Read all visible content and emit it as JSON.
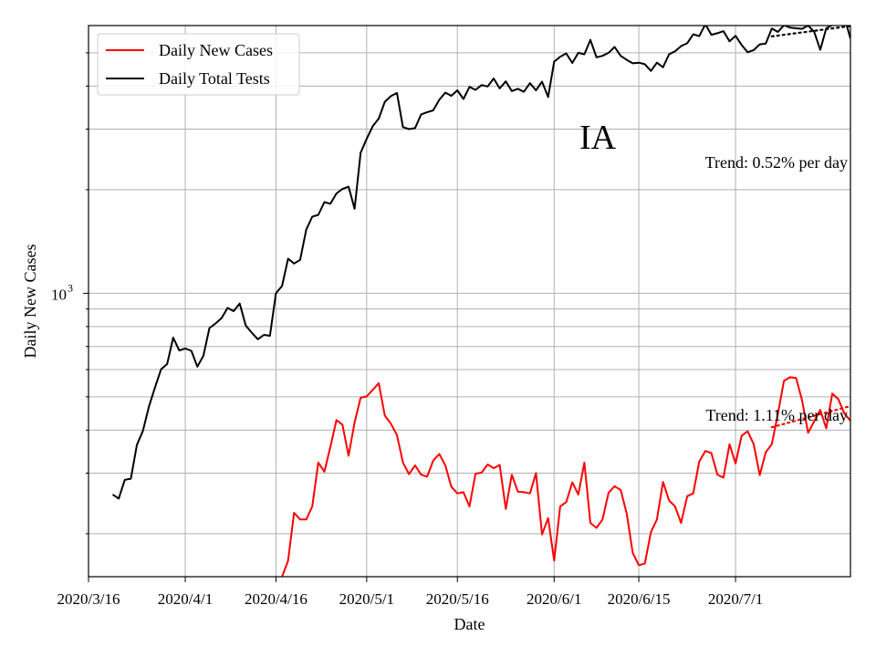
{
  "chart_data": {
    "type": "line",
    "title": "IA",
    "xlabel": "Date",
    "ylabel": "Daily New Cases",
    "yscale": "log",
    "grid": true,
    "legend_placement": "top-left",
    "x_ticks": [
      "2020/3/16",
      "2020/4/1",
      "2020/4/16",
      "2020/5/1",
      "2020/5/16",
      "2020/6/1",
      "2020/6/15",
      "2020/7/1"
    ],
    "x_tick_days": [
      0,
      16,
      31,
      46,
      61,
      77,
      91,
      107
    ],
    "ylim": [
      150,
      6000
    ],
    "y_major_tick": {
      "value": 1000,
      "base": "10",
      "exponent": "3"
    },
    "y_minor_ticks": [
      200,
      300,
      400,
      500,
      600,
      700,
      800,
      900,
      2000,
      3000,
      4000,
      5000
    ],
    "x_start_date": "2020-03-16",
    "x_end_day": 126,
    "series": [
      {
        "name": "Daily New Cases",
        "color": "#ff0000",
        "start_date": "2020-04-17",
        "values": [
          150,
          167,
          230,
          220,
          220,
          240,
          322,
          303,
          358,
          428,
          415,
          337,
          421,
          497,
          501,
          524,
          548,
          441,
          418,
          387,
          322,
          298,
          316,
          297,
          293,
          326,
          341,
          316,
          274,
          262,
          264,
          240,
          299,
          301,
          318,
          310,
          317,
          236,
          297,
          265,
          264,
          262,
          300,
          199,
          222,
          167,
          240,
          247,
          282,
          260,
          322,
          215,
          208,
          220,
          263,
          275,
          268,
          229,
          176,
          162,
          164,
          202,
          220,
          283,
          250,
          240,
          215,
          257,
          262,
          324,
          348,
          343,
          297,
          291,
          364,
          320,
          385,
          397,
          364,
          296,
          345,
          364,
          446,
          556,
          570,
          567,
          488,
          393,
          424,
          458,
          405,
          511,
          492,
          447,
          426
        ]
      },
      {
        "name": "Daily Total Tests",
        "color": "#000000",
        "start_date": "2020-03-20",
        "values": [
          260,
          253,
          287,
          289,
          362,
          398,
          469,
          533,
          601,
          623,
          743,
          682,
          691,
          680,
          612,
          658,
          792,
          817,
          847,
          907,
          887,
          934,
          806,
          768,
          735,
          757,
          752,
          1000,
          1050,
          1260,
          1220,
          1250,
          1530,
          1670,
          1690,
          1840,
          1820,
          1950,
          2010,
          2040,
          1760,
          2560,
          2810,
          3060,
          3220,
          3600,
          3740,
          3820,
          3040,
          3000,
          3020,
          3310,
          3360,
          3400,
          3650,
          3830,
          3750,
          3890,
          3670,
          3980,
          3900,
          4030,
          3990,
          4210,
          3940,
          4130,
          3870,
          3930,
          3850,
          4080,
          3890,
          4120,
          3720,
          4710,
          4870,
          4980,
          4670,
          5000,
          4950,
          5450,
          4850,
          4900,
          5000,
          5200,
          4900,
          4770,
          4660,
          4680,
          4630,
          4430,
          4680,
          4540,
          4950,
          5050,
          5230,
          5330,
          5660,
          5590,
          6050,
          5640,
          5700,
          5780,
          5400,
          5600,
          5270,
          5020,
          5090,
          5290,
          5320,
          5880,
          5750,
          6010,
          5920,
          5890,
          5870,
          6000,
          5760,
          5100,
          5890,
          6020,
          6420,
          6340,
          5500
        ]
      }
    ],
    "trend_lines": [
      {
        "series": "Daily Total Tests",
        "label": "Trend: 0.52% per day",
        "from_day": 113,
        "to_day": 126,
        "start": 5580,
        "end": 5980
      },
      {
        "series": "Daily New Cases",
        "label": "Trend: 1.11% per day",
        "from_day": 113,
        "to_day": 126,
        "start": 408,
        "end": 470
      }
    ]
  }
}
